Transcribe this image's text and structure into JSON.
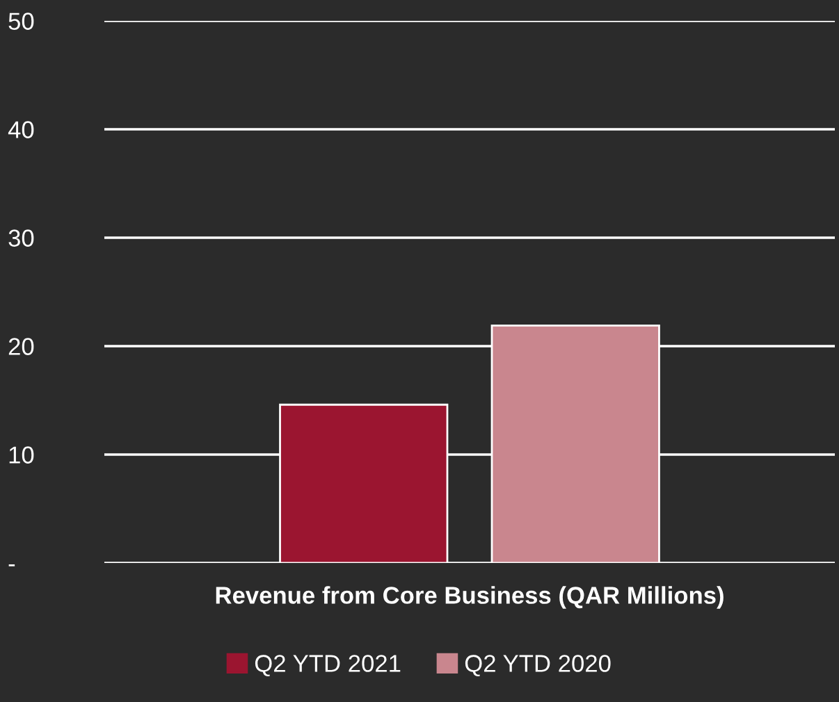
{
  "chart_data": {
    "type": "bar",
    "categories": [
      "Revenue from Core Business (QAR Millions)"
    ],
    "series": [
      {
        "name": "Q2 YTD 2021",
        "color": "#9b1530",
        "values": [
          14.6
        ]
      },
      {
        "name": "Q2 YTD 2020",
        "color": "#c9868e",
        "values": [
          21.9
        ]
      }
    ],
    "ylim": [
      0,
      50
    ],
    "yticks": [
      {
        "value": 0,
        "label": "-"
      },
      10,
      20,
      30,
      40,
      50
    ],
    "grid": "y",
    "legend": "bottom"
  }
}
